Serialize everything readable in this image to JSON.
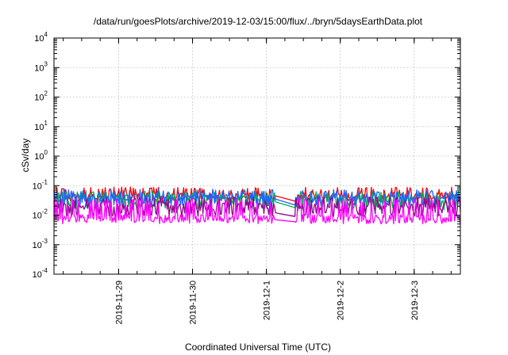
{
  "chart_data": {
    "type": "line",
    "title": "/data/run/goesPlots/archive/2019-12-03/15:00/flux/../bryn/5daysEarthData.plot",
    "xlabel": "Coordinated Universal Time (UTC)",
    "ylabel": "cSv/day",
    "yscale": "log",
    "ylim": [
      0.0001,
      10000
    ],
    "y_ticks": [
      {
        "exp": "-4",
        "value": 0.0001
      },
      {
        "exp": "-3",
        "value": 0.001
      },
      {
        "exp": "-2",
        "value": 0.01
      },
      {
        "exp": "-1",
        "value": 0.1
      },
      {
        "exp": "0",
        "value": 1
      },
      {
        "exp": "1",
        "value": 10
      },
      {
        "exp": "2",
        "value": 100
      },
      {
        "exp": "3",
        "value": 1000
      },
      {
        "exp": "4",
        "value": 10000
      }
    ],
    "y_tick_base": "10",
    "xlim": [
      "2019-11-28T03:00",
      "2019-12-03T15:00"
    ],
    "x_ticks": [
      {
        "label": "2019-11-29",
        "value": "2019-11-29T00:00"
      },
      {
        "label": "2019-11-30",
        "value": "2019-11-30T00:00"
      },
      {
        "label": "2019-12-1",
        "value": "2019-12-01T00:00"
      },
      {
        "label": "2019-12-2",
        "value": "2019-12-02T00:00"
      },
      {
        "label": "2019-12-3",
        "value": "2019-12-03T00:00"
      }
    ],
    "grid": true,
    "data_gap": [
      "2019-12-01T03:00",
      "2019-12-01T09:00"
    ],
    "series": [
      {
        "color": "#ff0000",
        "base": 0.045,
        "spread": 0.0,
        "spike_to": 0.09,
        "floor": 0.03,
        "gap_start": 0.045,
        "gap_end": 0.03
      },
      {
        "color": "#00b050",
        "base": 0.035,
        "spread": 0.0,
        "spike_to": 0.065,
        "floor": 0.015,
        "gap_start": 0.028,
        "gap_end": 0.018
      },
      {
        "color": "#1e64ff",
        "base": 0.04,
        "spread": 0.0,
        "spike_to": 0.075,
        "floor": 0.02,
        "gap_start": 0.035,
        "gap_end": 0.022
      },
      {
        "color": "#8a0a8a",
        "base": 0.02,
        "spread": 0.0,
        "spike_to": 0.04,
        "floor": 0.009,
        "gap_start": 0.012,
        "gap_end": 0.009
      },
      {
        "color": "#ff00ff",
        "base": 0.008,
        "spread": 0.0,
        "spike_to": 0.035,
        "floor": 0.005,
        "gap_start": 0.007,
        "gap_end": 0.006
      }
    ]
  }
}
